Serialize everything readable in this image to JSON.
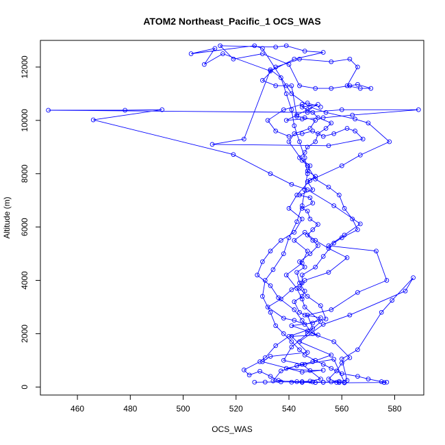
{
  "chart_data": {
    "type": "line",
    "title": "ATOM2 Northeast_Pacific_1 OCS_WAS",
    "xlabel": "OCS_WAS",
    "ylabel": "Altitude (m)",
    "xlim": [
      446,
      591
    ],
    "ylim": [
      -300,
      13000
    ],
    "xticks": [
      460,
      480,
      500,
      520,
      540,
      560,
      580
    ],
    "yticks": [
      0,
      2000,
      4000,
      6000,
      8000,
      10000,
      12000
    ],
    "grid": false,
    "series_color": "#0000ff",
    "marker": "open-circle",
    "series": [
      {
        "name": "",
        "points": [
          [
            527,
            180
          ],
          [
            531,
            185
          ],
          [
            537,
            190
          ],
          [
            543,
            200
          ],
          [
            549,
            190
          ],
          [
            553,
            180
          ],
          [
            558,
            175
          ],
          [
            561,
            180
          ],
          [
            557,
            1040
          ],
          [
            546,
            850
          ],
          [
            539,
            700
          ],
          [
            548,
            620
          ],
          [
            553,
            630
          ],
          [
            545,
            560
          ],
          [
            530,
            950
          ],
          [
            533,
            1150
          ],
          [
            547,
            1300
          ],
          [
            541,
            1900
          ],
          [
            551,
            1950
          ],
          [
            547,
            2100
          ],
          [
            541,
            2300
          ],
          [
            549,
            2400
          ],
          [
            552,
            2600
          ],
          [
            546,
            2700
          ],
          [
            544,
            2800
          ],
          [
            542,
            3200
          ],
          [
            545,
            3400
          ],
          [
            546,
            3600
          ],
          [
            544,
            3900
          ],
          [
            543,
            4300
          ],
          [
            546,
            4500
          ],
          [
            544,
            4700
          ],
          [
            548,
            5000
          ],
          [
            551,
            5300
          ],
          [
            549,
            5500
          ],
          [
            547,
            5700
          ],
          [
            549,
            5900
          ],
          [
            551,
            6100
          ],
          [
            548,
            6300
          ],
          [
            547,
            6600
          ],
          [
            545,
            6700
          ],
          [
            549,
            6900
          ],
          [
            548,
            7100
          ],
          [
            544,
            7200
          ],
          [
            549,
            7400
          ],
          [
            547,
            7700
          ],
          [
            550,
            7900
          ],
          [
            547,
            8100
          ],
          [
            548,
            8300
          ],
          [
            544,
            8600
          ],
          [
            546,
            8800
          ],
          [
            547,
            9000
          ],
          [
            550,
            9200
          ],
          [
            551,
            9500
          ],
          [
            554,
            9700
          ],
          [
            556,
            9900
          ],
          [
            551,
            10100
          ],
          [
            549,
            10300
          ],
          [
            547,
            10400
          ],
          [
            545,
            10500
          ],
          [
            551,
            10600
          ],
          [
            543,
            10200
          ],
          [
            539,
            10000
          ],
          [
            545,
            10050
          ],
          [
            553,
            10100
          ],
          [
            564,
            10200
          ],
          [
            589,
            10400
          ],
          [
            560,
            10400
          ],
          [
            547,
            10300
          ],
          [
            449,
            10380
          ],
          [
            478,
            10380
          ],
          [
            492,
            10400
          ],
          [
            466,
            10020
          ],
          [
            519,
            8720
          ],
          [
            533,
            8000
          ],
          [
            541,
            7600
          ],
          [
            547,
            7400
          ],
          [
            557,
            6800
          ],
          [
            567,
            6120
          ],
          [
            561,
            5700
          ],
          [
            555,
            5300
          ],
          [
            573,
            5100
          ],
          [
            577,
            4000
          ],
          [
            566,
            3550
          ],
          [
            556,
            2900
          ],
          [
            547,
            2700
          ],
          [
            549,
            2200
          ],
          [
            540,
            1900
          ],
          [
            535,
            1550
          ],
          [
            531,
            1100
          ],
          [
            529,
            950
          ],
          [
            523,
            640
          ],
          [
            525,
            450
          ],
          [
            529,
            590
          ],
          [
            533,
            400
          ],
          [
            536,
            250
          ],
          [
            541,
            180
          ],
          [
            545,
            175
          ],
          [
            550,
            170
          ],
          [
            553,
            175
          ],
          [
            556,
            190
          ],
          [
            559,
            210
          ],
          [
            562,
            250
          ],
          [
            560,
            1050
          ],
          [
            566,
            1400
          ],
          [
            575,
            2800
          ],
          [
            579,
            3250
          ],
          [
            587,
            4100
          ],
          [
            584,
            3600
          ],
          [
            563,
            2700
          ],
          [
            553,
            2350
          ],
          [
            544,
            1700
          ],
          [
            556,
            1200
          ],
          [
            549,
            950
          ],
          [
            543,
            800
          ],
          [
            537,
            600
          ],
          [
            534,
            230
          ],
          [
            545,
            200
          ],
          [
            548,
            220
          ],
          [
            552,
            300
          ],
          [
            545,
            850
          ],
          [
            538,
            1000
          ],
          [
            541,
            1500
          ],
          [
            547,
            2000
          ],
          [
            552,
            2450
          ],
          [
            546,
            3000
          ],
          [
            545,
            3300
          ],
          [
            543,
            3700
          ],
          [
            539,
            4200
          ],
          [
            545,
            4650
          ],
          [
            547,
            5100
          ],
          [
            542,
            5500
          ],
          [
            546,
            5800
          ],
          [
            550,
            5500
          ],
          [
            555,
            5200
          ],
          [
            562,
            4850
          ],
          [
            555,
            4300
          ],
          [
            546,
            4000
          ],
          [
            544,
            3700
          ],
          [
            547,
            3400
          ],
          [
            552,
            3050
          ],
          [
            554,
            2550
          ],
          [
            546,
            2350
          ],
          [
            542,
            2500
          ],
          [
            538,
            2580
          ],
          [
            532,
            3000
          ],
          [
            537,
            3300
          ],
          [
            541,
            3650
          ],
          [
            545,
            3900
          ],
          [
            545,
            4200
          ],
          [
            550,
            4500
          ],
          [
            553,
            4900
          ],
          [
            557,
            5400
          ],
          [
            560,
            5600
          ],
          [
            566,
            5900
          ],
          [
            564,
            6300
          ],
          [
            561,
            6700
          ],
          [
            559,
            7200
          ],
          [
            555,
            7500
          ],
          [
            550,
            7800
          ],
          [
            547,
            8300
          ],
          [
            545,
            8500
          ],
          [
            540,
            9200
          ],
          [
            542,
            9500
          ],
          [
            548,
            9700
          ],
          [
            550,
            10000
          ],
          [
            546,
            10100
          ],
          [
            543,
            10150
          ],
          [
            541,
            11300
          ],
          [
            535,
            11300
          ],
          [
            530,
            11500
          ],
          [
            535,
            12000
          ],
          [
            544,
            12300
          ],
          [
            556,
            12200
          ],
          [
            563,
            12300
          ],
          [
            566,
            12000
          ],
          [
            562,
            11300
          ],
          [
            567,
            11200
          ],
          [
            571,
            11200
          ],
          [
            566,
            11350
          ],
          [
            563,
            11300
          ],
          [
            556,
            11200
          ],
          [
            550,
            11200
          ],
          [
            544,
            11300
          ],
          [
            540,
            12100
          ],
          [
            530,
            12500
          ],
          [
            519,
            12300
          ],
          [
            514,
            12800
          ],
          [
            535,
            12750
          ],
          [
            539,
            12800
          ],
          [
            546,
            12600
          ],
          [
            553,
            12550
          ],
          [
            542,
            12300
          ],
          [
            533,
            11850
          ],
          [
            515,
            12500
          ],
          [
            508,
            12100
          ],
          [
            512,
            12700
          ],
          [
            503,
            12500
          ],
          [
            527,
            12800
          ],
          [
            530,
            12700
          ],
          [
            539,
            11300
          ],
          [
            541,
            11000
          ],
          [
            548,
            10500
          ],
          [
            554,
            10300
          ],
          [
            565,
            10050
          ],
          [
            570,
            9900
          ],
          [
            578,
            9200
          ],
          [
            567,
            8700
          ],
          [
            560,
            8300
          ],
          [
            548,
            7750
          ],
          [
            543,
            7200
          ],
          [
            540,
            6700
          ],
          [
            545,
            6300
          ],
          [
            542,
            5800
          ],
          [
            537,
            5500
          ],
          [
            533,
            5100
          ],
          [
            530,
            4700
          ],
          [
            528,
            4200
          ],
          [
            533,
            3800
          ],
          [
            536,
            3350
          ],
          [
            542,
            2900
          ],
          [
            545,
            2500
          ],
          [
            549,
            2000
          ],
          [
            557,
            1700
          ],
          [
            563,
            1100
          ],
          [
            560,
            900
          ],
          [
            558,
            600
          ],
          [
            555,
            300
          ],
          [
            559,
            170
          ],
          [
            561,
            160
          ],
          [
            576,
            170
          ],
          [
            577,
            180
          ],
          [
            575,
            200
          ],
          [
            570,
            300
          ],
          [
            566,
            400
          ],
          [
            560,
            500
          ],
          [
            556,
            700
          ],
          [
            553,
            850
          ],
          [
            550,
            1000
          ],
          [
            546,
            1200
          ],
          [
            544,
            1400
          ],
          [
            541,
            1700
          ],
          [
            538,
            2000
          ],
          [
            535,
            2300
          ],
          [
            533,
            2800
          ],
          [
            530,
            3400
          ],
          [
            531,
            4000
          ],
          [
            534,
            4400
          ],
          [
            538,
            5000
          ],
          [
            540,
            5600
          ],
          [
            543,
            6200
          ],
          [
            545,
            6800
          ],
          [
            546,
            7400
          ],
          [
            547,
            8000
          ],
          [
            546,
            8600
          ],
          [
            544,
            9200
          ],
          [
            542,
            9800
          ],
          [
            541,
            10400
          ],
          [
            539,
            11000
          ],
          [
            537,
            11600
          ],
          [
            533,
            11900
          ],
          [
            523,
            9300
          ],
          [
            511,
            9100
          ],
          [
            555,
            9050
          ],
          [
            568,
            9300
          ],
          [
            565,
            9600
          ],
          [
            562,
            9700
          ],
          [
            557,
            9500
          ],
          [
            553,
            9400
          ],
          [
            549,
            9600
          ],
          [
            545,
            9500
          ],
          [
            540,
            9400
          ],
          [
            535,
            9600
          ],
          [
            532,
            10000
          ],
          [
            538,
            10400
          ],
          [
            545,
            10600
          ],
          [
            547,
            10650
          ],
          [
            552,
            10500
          ]
        ]
      }
    ]
  }
}
